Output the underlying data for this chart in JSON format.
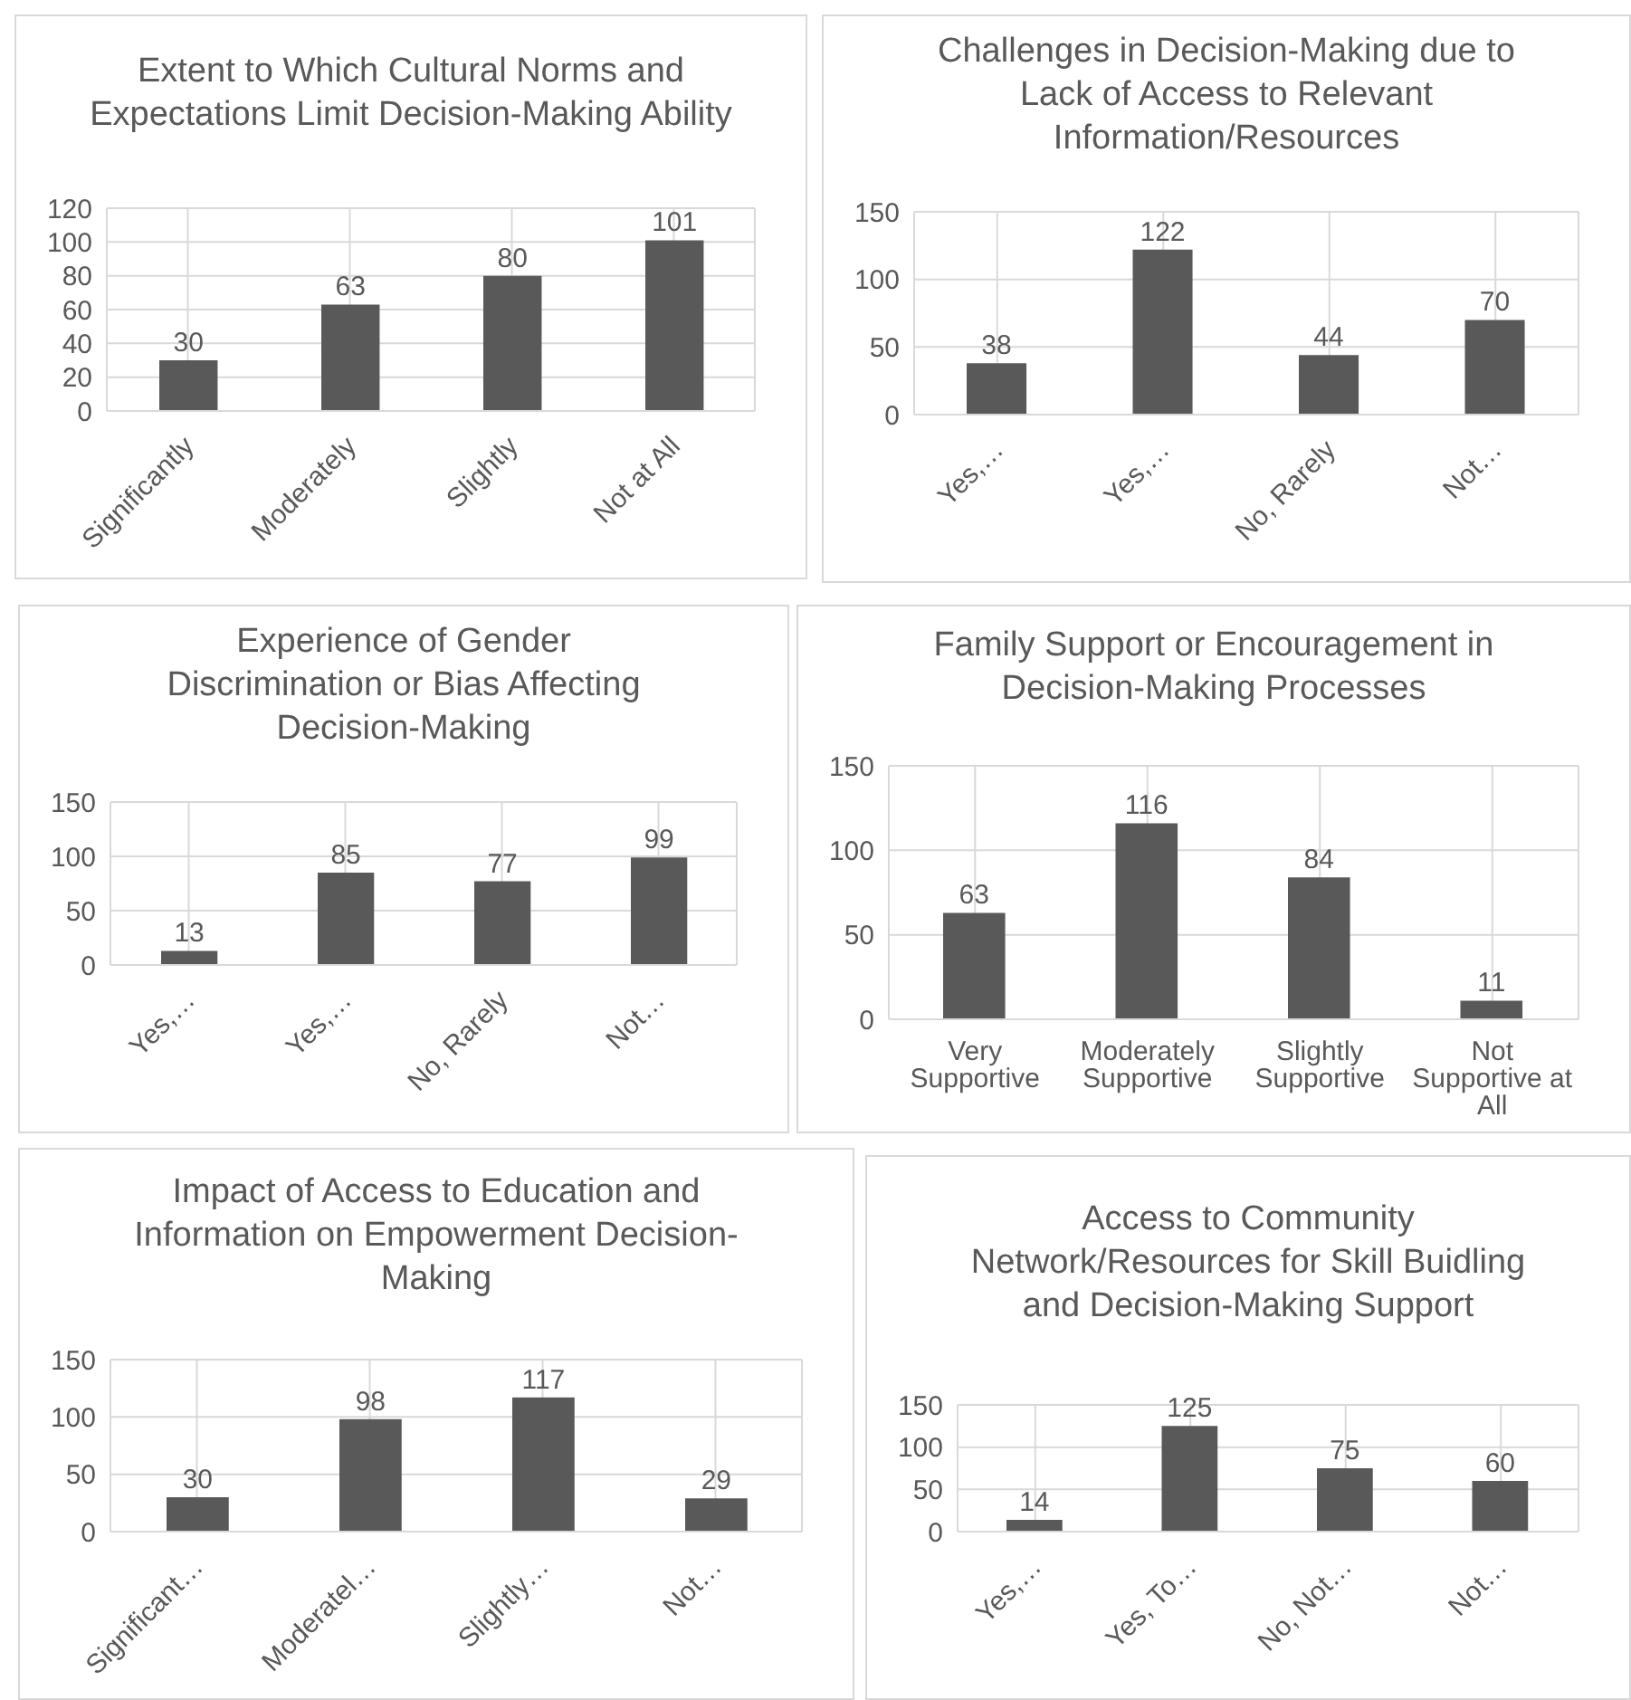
{
  "chart_data": [
    {
      "type": "bar",
      "title": "Extent to Which Cultural Norms and Expectations Limit Decision-Making Ability",
      "categories": [
        "Significantly",
        "Moderately",
        "Slightly",
        "Not at All"
      ],
      "values": [
        30,
        63,
        80,
        101
      ],
      "color": "#595959",
      "ylim": [
        0,
        120
      ],
      "yticks": [
        0,
        20,
        40,
        60,
        80,
        100,
        120
      ],
      "grid": true,
      "data_labels": true
    },
    {
      "type": "bar",
      "title": "Challenges in Decision-Making due to Lack of Access to Relevant Information/Resources",
      "categories": [
        "Yes,…",
        "Yes,…",
        "No, Rarely",
        "Not…"
      ],
      "values": [
        38,
        122,
        44,
        70
      ],
      "color": "#595959",
      "ylim": [
        0,
        150
      ],
      "yticks": [
        0,
        50,
        100,
        150
      ],
      "grid": true,
      "data_labels": true
    },
    {
      "type": "bar",
      "title": "Experience of Gender Discrimination or Bias Affecting Decision-Making",
      "categories": [
        "Yes,…",
        "Yes,…",
        "No, Rarely",
        "Not…"
      ],
      "values": [
        13,
        85,
        77,
        99
      ],
      "color": "#595959",
      "ylim": [
        0,
        150
      ],
      "yticks": [
        0,
        50,
        100,
        150
      ],
      "grid": true,
      "data_labels": true
    },
    {
      "type": "bar",
      "title": "Family Support or Encouragement in Decision-Making Processes",
      "categories": [
        "Very Supportive",
        "Moderately Supportive",
        "Slightly Supportive",
        "Not Supportive at All"
      ],
      "values": [
        63,
        116,
        84,
        11
      ],
      "color": "#595959",
      "ylim": [
        0,
        150
      ],
      "yticks": [
        0,
        50,
        100,
        150
      ],
      "grid": true,
      "data_labels": true
    },
    {
      "type": "bar",
      "title": "Impact of Access to Education and Information on Empowerment Decision-Making",
      "categories": [
        "Significant…",
        "Moderatel…",
        "Slightly…",
        "Not…"
      ],
      "values": [
        30,
        98,
        117,
        29
      ],
      "color": "#595959",
      "ylim": [
        0,
        150
      ],
      "yticks": [
        0,
        50,
        100,
        150
      ],
      "grid": true,
      "data_labels": true
    },
    {
      "type": "bar",
      "title": "Access to Community Network/Resources for Skill Buidling and Decision-Making Support",
      "categories": [
        "Yes,…",
        "Yes, To…",
        "No, Not…",
        "Not…"
      ],
      "values": [
        14,
        125,
        75,
        60
      ],
      "color": "#595959",
      "ylim": [
        0,
        150
      ],
      "yticks": [
        0,
        50,
        100,
        150
      ],
      "grid": true,
      "data_labels": true
    }
  ]
}
